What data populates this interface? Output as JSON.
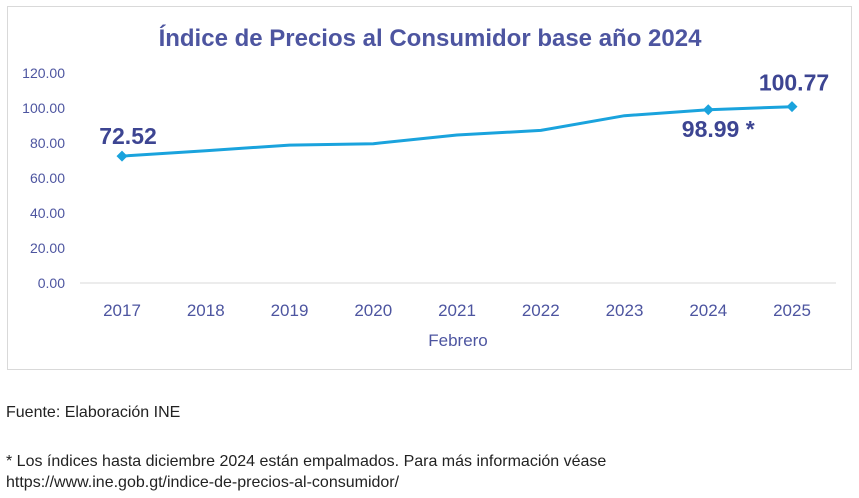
{
  "colors": {
    "line": "#1aa3dd",
    "text": "#4d55a0",
    "label": "#3d4592",
    "axis": "#d9d9d9"
  },
  "chart_data": {
    "type": "line",
    "title": "Índice de Precios al Consumidor base año 2024",
    "xlabel": "Febrero",
    "ylabel": "",
    "categories": [
      "2017",
      "2018",
      "2019",
      "2020",
      "2021",
      "2022",
      "2023",
      "2024",
      "2025"
    ],
    "series": [
      {
        "values": [
          72.52,
          75.6,
          78.8,
          79.6,
          84.6,
          87.2,
          95.6,
          98.99,
          100.77
        ]
      }
    ],
    "y_ticks": [
      "0.00",
      "20.00",
      "40.00",
      "60.00",
      "80.00",
      "100.00",
      "120.00"
    ],
    "ylim": [
      0,
      120
    ],
    "grid": false,
    "legend": "none",
    "data_labels": [
      {
        "index": 0,
        "text": "72.52",
        "position": "above"
      },
      {
        "index": 7,
        "text": "98.99 *",
        "position": "below"
      },
      {
        "index": 8,
        "text": "100.77",
        "position": "above"
      }
    ]
  },
  "footer": {
    "source": "Fuente: Elaboración INE",
    "note_line1": "* Los índices hasta diciembre 2024 están empalmados. Para más información véase",
    "note_line2": "https://www.ine.gob.gt/indice-de-precios-al-consumidor/"
  }
}
